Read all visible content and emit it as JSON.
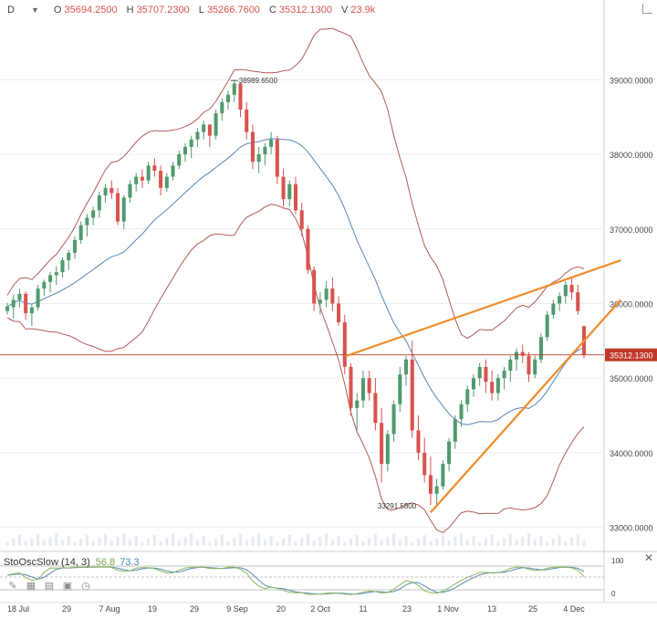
{
  "header": {
    "symbol": "D",
    "open_label": "O",
    "open": "35694.2500",
    "high_label": "H",
    "high": "35707.2300",
    "low_label": "L",
    "low": "35266.7600",
    "close_label": "C",
    "close": "35312.1300",
    "volume_label": "V",
    "volume": "23.9k"
  },
  "oscillator": {
    "name": "StoOscSlow (14, 3)",
    "k_value": "56.8",
    "d_value": "73.3",
    "axis_labels": [
      "100",
      "0"
    ]
  },
  "icons": [
    "pencil-icon",
    "grid-icon",
    "bars-icon",
    "calendar-icon",
    "clock-icon"
  ],
  "colors": {
    "up": "#4f9a6e",
    "down": "#d9534f",
    "band": "#b35a5a",
    "sma": "#5b86b5",
    "trendline": "#f08c2a",
    "last_price": "#c0392b",
    "stoch_k": "#8ab85a",
    "stoch_d": "#5b86b5"
  },
  "chart_data": {
    "type": "candlestick",
    "price_axis_labels": [
      "39000.0000",
      "38000.0000",
      "37000.0000",
      "36000.0000",
      "35000.0000",
      "34000.0000",
      "33000.0000"
    ],
    "ylim": [
      32750,
      39800
    ],
    "last_price": "35312.1300",
    "x_labels": [
      "18 Jul",
      "29",
      "7 Aug",
      "19",
      "29",
      "9 Sep",
      "20",
      "2 Oct",
      "11",
      "23",
      "1 Nov",
      "13",
      "25",
      "4 Dec"
    ],
    "annotations": [
      "38989.6500",
      "33291.5800"
    ],
    "candles": [
      [
        35900,
        36010,
        35850,
        35960
      ],
      [
        35950,
        36120,
        35800,
        36050
      ],
      [
        36050,
        36200,
        35950,
        36130
      ],
      [
        36130,
        36160,
        35780,
        35870
      ],
      [
        35870,
        36000,
        35700,
        35950
      ],
      [
        35950,
        36250,
        35900,
        36200
      ],
      [
        36200,
        36320,
        36100,
        36290
      ],
      [
        36290,
        36420,
        36150,
        36380
      ],
      [
        36380,
        36500,
        36250,
        36420
      ],
      [
        36420,
        36620,
        36350,
        36580
      ],
      [
        36580,
        36720,
        36450,
        36680
      ],
      [
        36680,
        36900,
        36600,
        36850
      ],
      [
        36850,
        37100,
        36800,
        37050
      ],
      [
        37050,
        37200,
        36900,
        37150
      ],
      [
        37150,
        37300,
        37050,
        37250
      ],
      [
        37250,
        37500,
        37150,
        37450
      ],
      [
        37450,
        37600,
        37350,
        37550
      ],
      [
        37550,
        37650,
        37400,
        37480
      ],
      [
        37480,
        37550,
        37050,
        37100
      ],
      [
        37100,
        37450,
        37000,
        37420
      ],
      [
        37420,
        37650,
        37350,
        37600
      ],
      [
        37600,
        37750,
        37500,
        37700
      ],
      [
        37700,
        37800,
        37550,
        37650
      ],
      [
        37650,
        37900,
        37600,
        37850
      ],
      [
        37850,
        37950,
        37700,
        37780
      ],
      [
        37780,
        37850,
        37450,
        37550
      ],
      [
        37550,
        37750,
        37500,
        37700
      ],
      [
        37700,
        37900,
        37650,
        37850
      ],
      [
        37850,
        38050,
        37800,
        38000
      ],
      [
        38000,
        38150,
        37900,
        38100
      ],
      [
        38100,
        38250,
        37950,
        38200
      ],
      [
        38200,
        38350,
        38100,
        38300
      ],
      [
        38300,
        38450,
        38200,
        38400
      ],
      [
        38400,
        38350,
        38100,
        38250
      ],
      [
        38250,
        38600,
        38200,
        38550
      ],
      [
        38550,
        38750,
        38450,
        38700
      ],
      [
        38700,
        38850,
        38600,
        38800
      ],
      [
        38800,
        38990,
        38700,
        38950
      ],
      [
        38950,
        38960,
        38500,
        38600
      ],
      [
        38600,
        38700,
        38200,
        38300
      ],
      [
        38300,
        38400,
        37800,
        37900
      ],
      [
        37900,
        38100,
        37750,
        38000
      ],
      [
        38000,
        38150,
        37850,
        38100
      ],
      [
        38100,
        38300,
        38000,
        38200
      ],
      [
        38200,
        38250,
        37600,
        37700
      ],
      [
        37700,
        37800,
        37300,
        37400
      ],
      [
        37400,
        37650,
        37300,
        37600
      ],
      [
        37600,
        37700,
        37200,
        37250
      ],
      [
        37250,
        37350,
        36900,
        37000
      ],
      [
        37000,
        37050,
        36400,
        36450
      ],
      [
        36450,
        36500,
        35900,
        36000
      ],
      [
        36000,
        36150,
        35850,
        36050
      ],
      [
        36050,
        36300,
        35950,
        36200
      ],
      [
        36200,
        36350,
        35900,
        36000
      ],
      [
        36000,
        36100,
        35700,
        35750
      ],
      [
        35750,
        35850,
        35050,
        35150
      ],
      [
        35150,
        35200,
        34500,
        34600
      ],
      [
        34600,
        34800,
        34300,
        34700
      ],
      [
        34700,
        35100,
        34600,
        35000
      ],
      [
        35000,
        35100,
        34700,
        34800
      ],
      [
        34800,
        35000,
        34300,
        34400
      ],
      [
        34400,
        34600,
        33600,
        33850
      ],
      [
        33850,
        34300,
        33750,
        34250
      ],
      [
        34250,
        34700,
        34150,
        34650
      ],
      [
        34650,
        35150,
        34550,
        35050
      ],
      [
        35050,
        35300,
        34900,
        35250
      ],
      [
        35250,
        35500,
        34200,
        34300
      ],
      [
        34300,
        34500,
        33900,
        34000
      ],
      [
        34000,
        34200,
        33600,
        33700
      ],
      [
        33700,
        33950,
        33300,
        33450
      ],
      [
        33450,
        33650,
        33300,
        33550
      ],
      [
        33550,
        33900,
        33500,
        33850
      ],
      [
        33850,
        34200,
        33750,
        34150
      ],
      [
        34150,
        34500,
        34050,
        34450
      ],
      [
        34450,
        34700,
        34350,
        34650
      ],
      [
        34650,
        34900,
        34550,
        34850
      ],
      [
        34850,
        35050,
        34750,
        35000
      ],
      [
        35000,
        35200,
        34900,
        35150
      ],
      [
        35150,
        35250,
        34800,
        34950
      ],
      [
        34950,
        35100,
        34700,
        34800
      ],
      [
        34800,
        35050,
        34700,
        35000
      ],
      [
        35000,
        35150,
        34850,
        35100
      ],
      [
        35100,
        35300,
        34950,
        35250
      ],
      [
        35250,
        35400,
        35100,
        35350
      ],
      [
        35350,
        35450,
        35200,
        35300
      ],
      [
        35300,
        35350,
        34950,
        35050
      ],
      [
        35050,
        35300,
        35000,
        35250
      ],
      [
        35250,
        35600,
        35200,
        35550
      ],
      [
        35550,
        35900,
        35500,
        35850
      ],
      [
        35850,
        36050,
        35800,
        36000
      ],
      [
        36000,
        36150,
        35900,
        36100
      ],
      [
        36100,
        36300,
        36000,
        36250
      ],
      [
        36250,
        36350,
        36050,
        36150
      ],
      [
        36150,
        36250,
        35850,
        35900
      ],
      [
        35694.25,
        35707.23,
        35266.76,
        35312.13
      ]
    ]
  }
}
